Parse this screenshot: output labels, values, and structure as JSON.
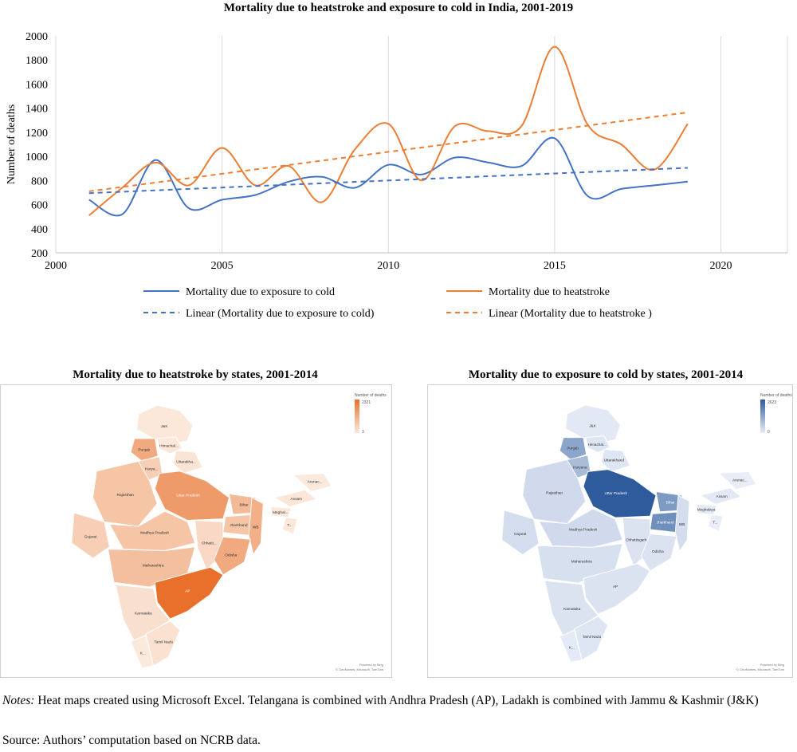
{
  "chart_data": [
    {
      "type": "line",
      "title": "Mortality due to heatstroke and exposure to cold in India, 2001-2019",
      "xlabel": "",
      "ylabel": "Number of deaths",
      "xlim": [
        2000,
        2022
      ],
      "ylim": [
        200,
        2000
      ],
      "xticks": [
        2000,
        2005,
        2010,
        2015,
        2020
      ],
      "yticks": [
        200,
        400,
        600,
        800,
        1000,
        1200,
        1400,
        1600,
        1800,
        2000
      ],
      "grid": "vertical",
      "x": [
        2001,
        2002,
        2003,
        2004,
        2005,
        2006,
        2007,
        2008,
        2009,
        2010,
        2011,
        2012,
        2013,
        2014,
        2015,
        2016,
        2017,
        2018,
        2019
      ],
      "series": [
        {
          "name": "Mortality due to exposure to cold",
          "color": "#4472c4",
          "style": "solid",
          "values": [
            640,
            520,
            970,
            570,
            640,
            680,
            790,
            830,
            740,
            930,
            850,
            990,
            950,
            920,
            1150,
            670,
            730,
            760,
            790
          ]
        },
        {
          "name": "Mortality due to heatstroke",
          "color": "#ed7d31",
          "style": "solid",
          "values": [
            510,
            740,
            950,
            760,
            1070,
            760,
            920,
            620,
            1060,
            1270,
            800,
            1250,
            1210,
            1250,
            1910,
            1260,
            1100,
            890,
            1270
          ]
        },
        {
          "name": "Linear (Mortality due to exposure to cold)",
          "color": "#4472c4",
          "style": "dashed",
          "trend": [
            695,
            905
          ]
        },
        {
          "name": "Linear (Mortality due to heatstroke )",
          "color": "#ed7d31",
          "style": "dashed",
          "trend": [
            710,
            1365
          ]
        }
      ],
      "legend": "bottom"
    },
    {
      "type": "map",
      "title": "Mortality due to heatstroke by states, 2001-2014",
      "legend_title": "Number of deaths",
      "legend_max": "2321",
      "legend_min": "3",
      "color_low": "#fbe9dc",
      "color_high": "#e8702a",
      "regions": [
        {
          "name": "J&K",
          "value": 20
        },
        {
          "name": "Himachal...",
          "value": 15
        },
        {
          "name": "Punjab",
          "value": 1200
        },
        {
          "name": "Harya...",
          "value": 500
        },
        {
          "name": "Uttarakha...",
          "value": 100
        },
        {
          "name": "Rajasthan",
          "value": 700
        },
        {
          "name": "Uttar Pradesh",
          "value": 1500
        },
        {
          "name": "Bihar",
          "value": 900
        },
        {
          "name": "Jharkhand",
          "value": 700
        },
        {
          "name": "WB",
          "value": 1100
        },
        {
          "name": "Gujarat",
          "value": 500
        },
        {
          "name": "Madhya Pradesh",
          "value": 700
        },
        {
          "name": "Chhatti...",
          "value": 300
        },
        {
          "name": "Odisha",
          "value": 1200
        },
        {
          "name": "Maharashtra",
          "value": 800
        },
        {
          "name": "AP",
          "value": 2321
        },
        {
          "name": "Karnataka",
          "value": 200
        },
        {
          "name": "Tamil Nadu",
          "value": 150
        },
        {
          "name": "K...",
          "value": 3
        },
        {
          "name": "Assam",
          "value": 60
        },
        {
          "name": "Arunac...",
          "value": 3
        },
        {
          "name": "Meghal...",
          "value": 20
        },
        {
          "name": "T...",
          "value": 10
        }
      ],
      "attribution": "Powered by Bing\n© GeoNames, Microsoft, TomTom"
    },
    {
      "type": "map",
      "title": "Mortality due to exposure to cold by states, 2001-2014",
      "legend_title": "Number of deaths",
      "legend_max": "2623",
      "legend_min": "0",
      "color_low": "#e9eef8",
      "color_high": "#2d5b9c",
      "regions": [
        {
          "name": "J&K",
          "value": 100
        },
        {
          "name": "Himachal...",
          "value": 150
        },
        {
          "name": "Punjab",
          "value": 1300
        },
        {
          "name": "Haryana",
          "value": 900
        },
        {
          "name": "Uttarakhand",
          "value": 150
        },
        {
          "name": "Rajasthan",
          "value": 350
        },
        {
          "name": "Uttar Pradesh",
          "value": 2623
        },
        {
          "name": "Bihar",
          "value": 1500
        },
        {
          "name": "Jharkhand",
          "value": 1700
        },
        {
          "name": "WB",
          "value": 300
        },
        {
          "name": "Gujarat",
          "value": 300
        },
        {
          "name": "Madhya Pradesh",
          "value": 350
        },
        {
          "name": "Chhattisgarh",
          "value": 200
        },
        {
          "name": "Odisha",
          "value": 200
        },
        {
          "name": "Maharashtra",
          "value": 250
        },
        {
          "name": "AP",
          "value": 200
        },
        {
          "name": "Karnataka",
          "value": 200
        },
        {
          "name": "Tamil Nadu",
          "value": 150
        },
        {
          "name": "K...",
          "value": 50
        },
        {
          "name": "Assam",
          "value": 100
        },
        {
          "name": "Arunac...",
          "value": 20
        },
        {
          "name": "Meghalaya",
          "value": 80
        },
        {
          "name": "T...",
          "value": 20
        }
      ],
      "attribution": "Powered by Bing\n© GeoNames, Microsoft, TomTom"
    }
  ],
  "notes": {
    "label": "Notes:",
    "text": " Heat maps created using Microsoft Excel. Telangana is combined with Andhra Pradesh (AP), Ladakh is combined with Jammu & Kashmir (J&K)"
  },
  "source": "Source: Authors’ computation based on NCRB data."
}
